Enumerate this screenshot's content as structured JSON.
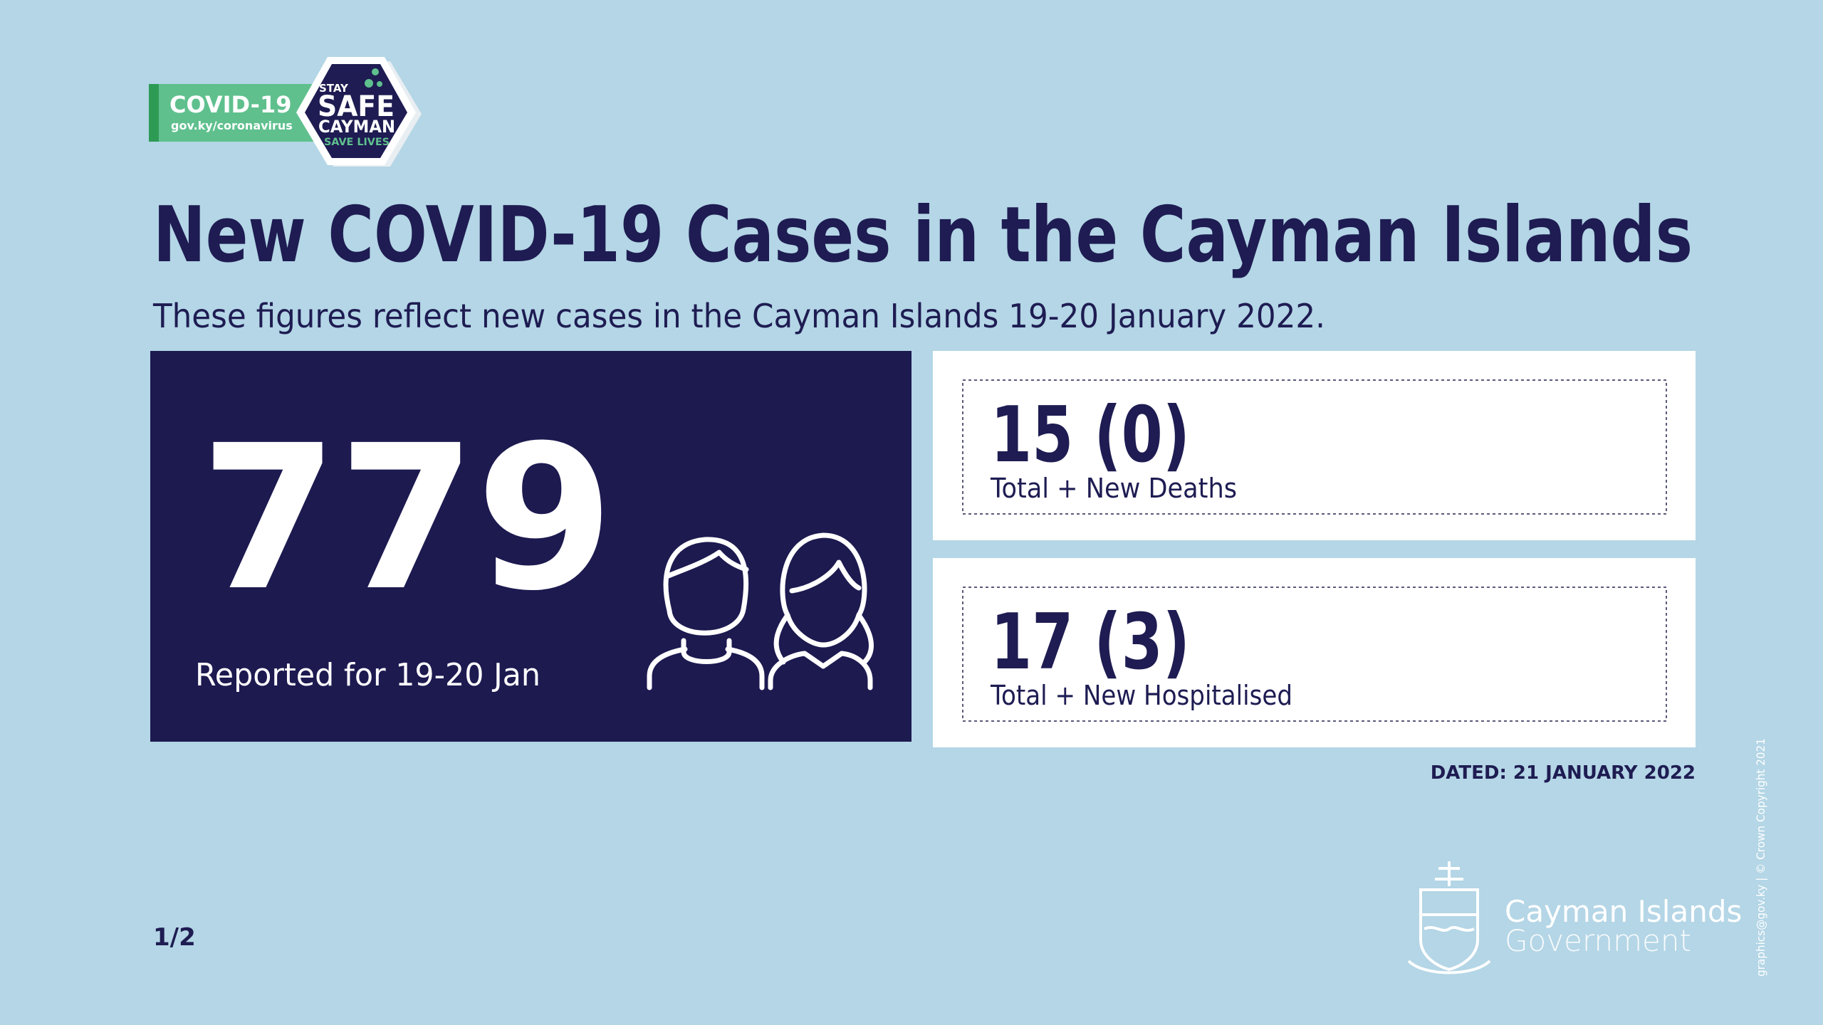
{
  "logo": {
    "label": "COVID-19",
    "url": "gov.ky/coronavirus",
    "badge": [
      "STAY",
      "SAFE",
      "CAYMAN",
      "SAVE LIVES"
    ]
  },
  "header": {
    "title": "New COVID-19 Cases in the Cayman Islands",
    "subtitle": "These figures reflect new cases in the Cayman Islands 19-20 January 2022."
  },
  "main_stat": {
    "value": "779",
    "caption": "Reported for 19-20 Jan"
  },
  "stats": [
    {
      "value": "15 (0)",
      "caption": "Total  + New Deaths"
    },
    {
      "value": "17 (3)",
      "caption": "Total + New Hospitalised"
    }
  ],
  "dated": "DATED: 21 JANUARY 2022",
  "page": "1/2",
  "footer": {
    "org_line1": "Cayman Islands",
    "org_line2": "Government",
    "credit": "graphics@gov.ky | © Crown Copyright 2021"
  }
}
